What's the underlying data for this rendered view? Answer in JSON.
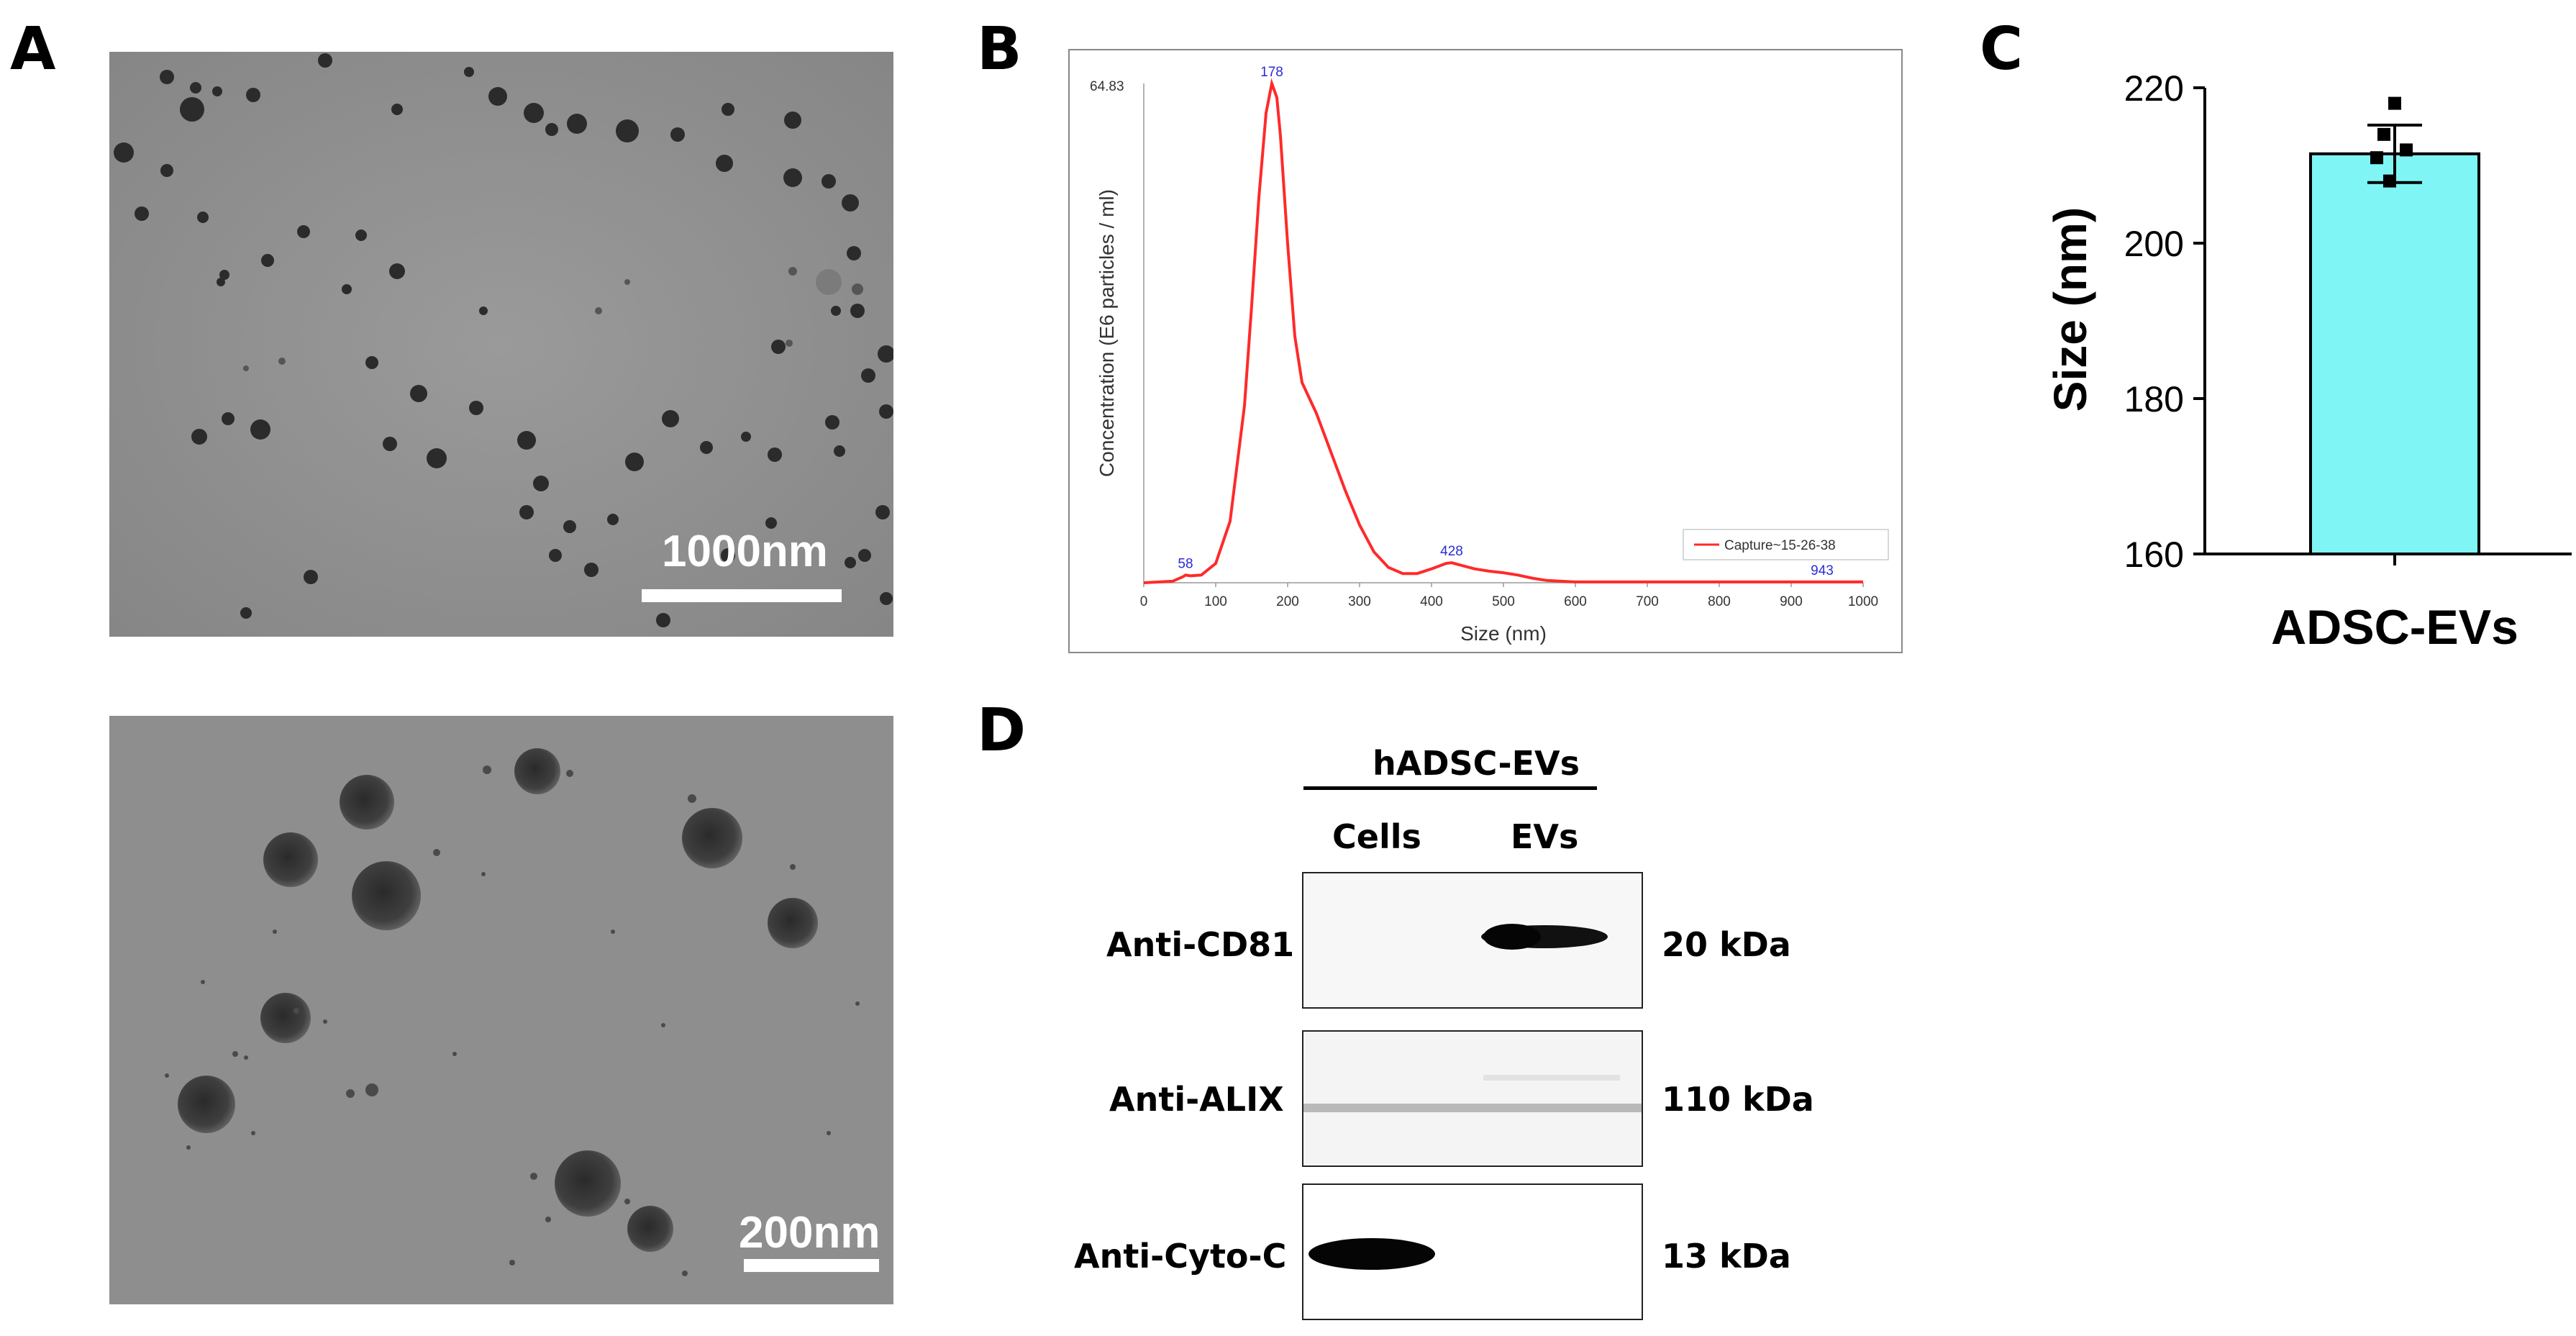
{
  "panels": {
    "A": {
      "letter": "A",
      "top_scale": "1000nm",
      "bottom_scale": "200nm"
    },
    "B": {
      "letter": "B"
    },
    "C": {
      "letter": "C"
    },
    "D": {
      "letter": "D"
    }
  },
  "chart_data": [
    {
      "type": "line",
      "panel": "B",
      "xlabel": "Size (nm)",
      "ylabel": "Concentration (E6 particles / ml)",
      "xlim": [
        0,
        1000
      ],
      "ylim": [
        0,
        64.83
      ],
      "ymax_label": "64.83",
      "xticks": [
        "0",
        "100",
        "200",
        "300",
        "400",
        "500",
        "600",
        "700",
        "800",
        "900",
        "1000"
      ],
      "peak_labels": [
        {
          "x": 58,
          "text": "58"
        },
        {
          "x": 178,
          "text": "178"
        },
        {
          "x": 428,
          "text": "428"
        },
        {
          "x": 943,
          "text": "943"
        }
      ],
      "legend": "Capture~15-26-38",
      "legend_position": "bottom-right",
      "series": [
        {
          "name": "Capture~15-26-38",
          "color": "#ff2a2a",
          "x": [
            0,
            40,
            55,
            58,
            65,
            80,
            100,
            120,
            140,
            150,
            160,
            170,
            178,
            185,
            190,
            200,
            210,
            220,
            230,
            240,
            260,
            280,
            300,
            320,
            340,
            360,
            380,
            400,
            420,
            428,
            440,
            460,
            480,
            500,
            520,
            540,
            560,
            580,
            600,
            650,
            700,
            800,
            900,
            943,
            1000
          ],
          "y": [
            0,
            0.2,
            0.8,
            1.0,
            0.9,
            1.0,
            2.5,
            8,
            23,
            36,
            50,
            61,
            64.83,
            63,
            58,
            44,
            32,
            26,
            24,
            22,
            17,
            12,
            7.5,
            4,
            2,
            1.2,
            1.2,
            1.8,
            2.5,
            2.6,
            2.3,
            1.8,
            1.5,
            1.3,
            1,
            0.6,
            0.3,
            0.2,
            0.1,
            0.1,
            0.1,
            0.1,
            0.1,
            0.1,
            0.1
          ]
        }
      ]
    },
    {
      "type": "bar",
      "panel": "C",
      "categories": [
        "ADSC-EVs"
      ],
      "values": [
        211.5
      ],
      "error": [
        3.7
      ],
      "points": [
        218,
        214,
        212,
        211,
        208
      ],
      "bar_color": "#7ff5f5",
      "ylabel": "Size (nm)",
      "ylim": [
        160,
        220
      ],
      "yticks": [
        "160",
        "180",
        "200",
        "220"
      ]
    }
  ],
  "western_blot": {
    "group_label": "hADSC-EVs",
    "lane_labels": [
      "Cells",
      "EVs"
    ],
    "rows": [
      {
        "antibody": "Anti-CD81",
        "size": "20 kDa"
      },
      {
        "antibody": "Anti-ALIX",
        "size": "110 kDa"
      },
      {
        "antibody": "Anti-Cyto-C",
        "size": "13 kDa"
      }
    ]
  }
}
